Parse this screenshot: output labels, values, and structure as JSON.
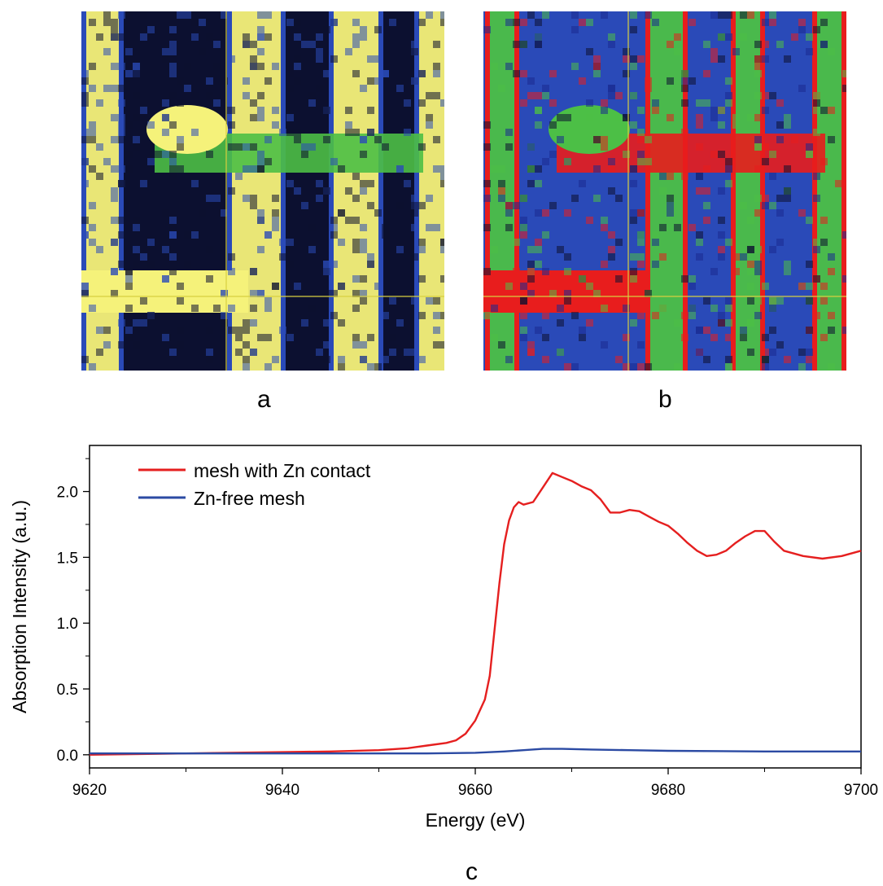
{
  "panels": {
    "a": {
      "label": "a"
    },
    "b": {
      "label": "b"
    },
    "c": {
      "label": "c"
    }
  },
  "colors": {
    "map_dark": "#0c1030",
    "map_blue": "#2a4ab8",
    "map_yellow": "#f5f27a",
    "map_green": "#4cbf46",
    "map_red": "#e81d1d",
    "crosshair": "#d8d040",
    "series_red": "#e51f1f",
    "series_blue": "#2b4aa3"
  },
  "chart_data": {
    "type": "line",
    "title": "",
    "xlabel": "Energy (eV)",
    "ylabel": "Absorption Intensity (a.u.)",
    "xlim": [
      9620,
      9700
    ],
    "ylim": [
      -0.1,
      2.35
    ],
    "xticks": [
      9620,
      9640,
      9660,
      9680,
      9700
    ],
    "yticks": [
      0.0,
      0.5,
      1.0,
      1.5,
      2.0
    ],
    "ytick_labels": [
      "0.0",
      "0.5",
      "1.0",
      "1.5",
      "2.0"
    ],
    "legend_position": "top-left",
    "grid": false,
    "series": [
      {
        "name": "mesh with Zn contact",
        "color": "#e51f1f",
        "x": [
          9620,
          9630,
          9640,
          9645,
          9650,
          9653,
          9655,
          9657,
          9658,
          9659,
          9660,
          9661,
          9661.5,
          9662,
          9662.5,
          9663,
          9663.5,
          9664,
          9664.5,
          9665,
          9666,
          9667,
          9668,
          9669,
          9670,
          9671,
          9672,
          9673,
          9674,
          9675,
          9676,
          9677,
          9678,
          9679,
          9680,
          9681,
          9682,
          9683,
          9684,
          9685,
          9686,
          9687,
          9688,
          9689,
          9690,
          9691,
          9692,
          9694,
          9696,
          9698,
          9700
        ],
        "y": [
          0.0,
          0.01,
          0.02,
          0.025,
          0.035,
          0.05,
          0.07,
          0.09,
          0.11,
          0.16,
          0.26,
          0.42,
          0.6,
          0.95,
          1.3,
          1.6,
          1.78,
          1.88,
          1.92,
          1.9,
          1.92,
          2.03,
          2.14,
          2.11,
          2.08,
          2.04,
          2.01,
          1.94,
          1.84,
          1.84,
          1.86,
          1.85,
          1.81,
          1.77,
          1.74,
          1.68,
          1.61,
          1.55,
          1.51,
          1.52,
          1.55,
          1.61,
          1.66,
          1.7,
          1.7,
          1.62,
          1.55,
          1.51,
          1.49,
          1.51,
          1.55
        ]
      },
      {
        "name": "Zn-free mesh",
        "color": "#2b4aa3",
        "x": [
          9620,
          9640,
          9655,
          9660,
          9663,
          9665,
          9667,
          9669,
          9672,
          9676,
          9680,
          9690,
          9700
        ],
        "y": [
          0.01,
          0.01,
          0.01,
          0.015,
          0.025,
          0.035,
          0.045,
          0.045,
          0.04,
          0.035,
          0.03,
          0.025,
          0.025
        ]
      }
    ]
  }
}
